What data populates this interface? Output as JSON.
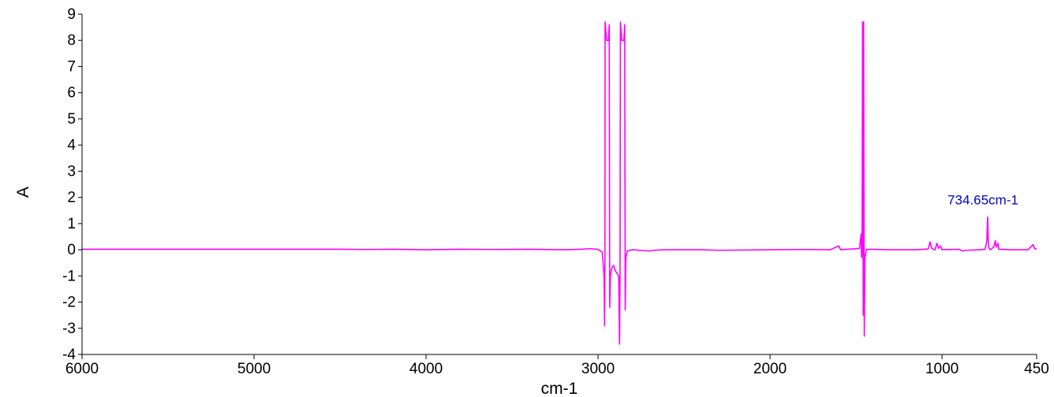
{
  "chart_data": {
    "type": "line",
    "xlabel": "cm-1",
    "ylabel": "A",
    "xlim": [
      6000,
      450
    ],
    "ylim": [
      -4,
      9
    ],
    "x_reversed": true,
    "grid": false,
    "x_ticks": [
      "6000",
      "5000",
      "4000",
      "3000",
      "2000",
      "1000",
      "450"
    ],
    "x_tick_values": [
      6000,
      5000,
      4000,
      3000,
      2000,
      1000,
      450
    ],
    "y_ticks": [
      "9",
      "8",
      "7",
      "6",
      "5",
      "4",
      "3",
      "2",
      "1",
      "0",
      "-1",
      "-2",
      "-3",
      "-4"
    ],
    "y_tick_values": [
      9,
      8,
      7,
      6,
      5,
      4,
      3,
      2,
      1,
      0,
      -1,
      -2,
      -3,
      -4
    ],
    "line_color": "#ff00ff",
    "annotation": {
      "text": "734.65cm-1",
      "x": 734.65,
      "y": 1.25,
      "color": "#0000cc"
    },
    "series": [
      {
        "points": [
          [
            6000,
            0.02
          ],
          [
            5500,
            0.02
          ],
          [
            5000,
            0.02
          ],
          [
            4500,
            0.02
          ],
          [
            4350,
            0.01
          ],
          [
            4200,
            0.02
          ],
          [
            4000,
            0.0
          ],
          [
            3800,
            0.02
          ],
          [
            3600,
            0.01
          ],
          [
            3400,
            0.02
          ],
          [
            3200,
            0.0
          ],
          [
            3100,
            0.02
          ],
          [
            3050,
            0.04
          ],
          [
            3000,
            0.02
          ],
          [
            2975,
            -0.1
          ],
          [
            2965,
            -1.0
          ],
          [
            2962,
            -2.9
          ],
          [
            2960,
            -1.0
          ],
          [
            2959,
            8.7
          ],
          [
            2950,
            8.0
          ],
          [
            2940,
            8.0
          ],
          [
            2935,
            8.6
          ],
          [
            2932,
            -2.2
          ],
          [
            2928,
            -1.0
          ],
          [
            2920,
            -0.7
          ],
          [
            2910,
            -0.6
          ],
          [
            2900,
            -0.8
          ],
          [
            2890,
            -0.9
          ],
          [
            2880,
            -1.0
          ],
          [
            2875,
            -3.6
          ],
          [
            2872,
            -1.0
          ],
          [
            2870,
            8.7
          ],
          [
            2862,
            8.0
          ],
          [
            2850,
            8.0
          ],
          [
            2845,
            8.6
          ],
          [
            2842,
            -2.3
          ],
          [
            2838,
            -0.3
          ],
          [
            2830,
            -0.05
          ],
          [
            2800,
            0.0
          ],
          [
            2700,
            -0.05
          ],
          [
            2680,
            -0.02
          ],
          [
            2600,
            0.0
          ],
          [
            2400,
            0.0
          ],
          [
            2300,
            -0.02
          ],
          [
            2000,
            0.0
          ],
          [
            1800,
            0.01
          ],
          [
            1650,
            0.0
          ],
          [
            1600,
            0.15
          ],
          [
            1590,
            0.0
          ],
          [
            1480,
            0.05
          ],
          [
            1470,
            0.6
          ],
          [
            1468,
            -0.3
          ],
          [
            1465,
            -0.1
          ],
          [
            1462,
            8.7
          ],
          [
            1458,
            -2.5
          ],
          [
            1456,
            8.7
          ],
          [
            1452,
            -3.3
          ],
          [
            1448,
            -0.3
          ],
          [
            1440,
            0.0
          ],
          [
            1420,
            0.02
          ],
          [
            1300,
            0.0
          ],
          [
            1150,
            0.0
          ],
          [
            1080,
            0.03
          ],
          [
            1070,
            0.3
          ],
          [
            1060,
            0.05
          ],
          [
            1040,
            0.0
          ],
          [
            1030,
            0.25
          ],
          [
            1020,
            0.05
          ],
          [
            1010,
            0.15
          ],
          [
            1000,
            0.0
          ],
          [
            900,
            0.02
          ],
          [
            880,
            -0.05
          ],
          [
            860,
            -0.02
          ],
          [
            780,
            0.0
          ],
          [
            750,
            0.02
          ],
          [
            740,
            0.3
          ],
          [
            734.65,
            1.25
          ],
          [
            730,
            0.1
          ],
          [
            720,
            0.0
          ],
          [
            700,
            0.1
          ],
          [
            690,
            0.35
          ],
          [
            685,
            0.1
          ],
          [
            675,
            0.25
          ],
          [
            670,
            0.02
          ],
          [
            600,
            0.0
          ],
          [
            500,
            0.0
          ],
          [
            470,
            0.2
          ],
          [
            460,
            0.02
          ],
          [
            450,
            0.05
          ]
        ]
      }
    ]
  }
}
